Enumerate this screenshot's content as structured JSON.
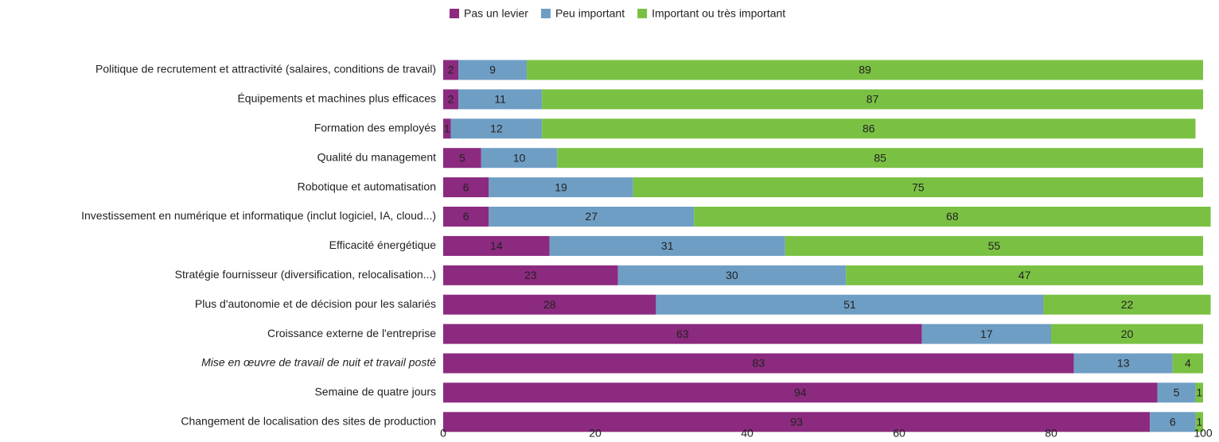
{
  "chart_data": {
    "type": "stacked_barh",
    "categories": [
      "Politique de recrutement et attractivité (salaires, conditions de travail)",
      "Équipements et machines plus efficaces",
      "Formation des employés",
      "Qualité du management",
      "Robotique et automatisation",
      "Investissement en numérique et informatique (inclut logiciel, IA, cloud...)",
      "Efficacité énergétique",
      "Stratégie fournisseur (diversification, relocalisation...)",
      "Plus d'autonomie et de décision pour les salariés",
      "Croissance externe de l'entreprise",
      "Mise en œuvre de travail de nuit et travail posté",
      "Semaine de quatre jours",
      "Changement de localisation des sites de production"
    ],
    "series": [
      {
        "name": "Pas un levier",
        "color": "#8b2a7e",
        "values": [
          2,
          2,
          1,
          5,
          6,
          6,
          14,
          23,
          28,
          63,
          83,
          94,
          93
        ]
      },
      {
        "name": "Peu important",
        "color": "#6f9ec4",
        "values": [
          9,
          11,
          12,
          10,
          19,
          27,
          31,
          30,
          51,
          17,
          13,
          5,
          6
        ]
      },
      {
        "name": "Important ou très important",
        "color": "#7ac143",
        "values": [
          89,
          87,
          86,
          85,
          75,
          68,
          55,
          47,
          22,
          20,
          4,
          1,
          1
        ]
      }
    ],
    "xlim": [
      0,
      100
    ],
    "xticks": [
      0,
      20,
      40,
      60,
      80,
      100
    ],
    "legend": "top"
  }
}
